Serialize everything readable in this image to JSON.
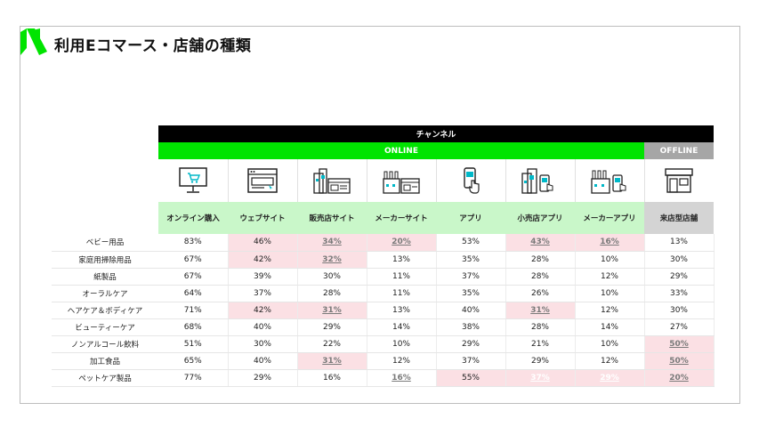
{
  "title": "利用Eコマース・店舗の種類",
  "table": {
    "channel_label": "チャンネル",
    "online_label": "ONLINE",
    "offline_label": "OFFLINE",
    "columns": [
      {
        "name": "オンライン購入",
        "group": "online",
        "icon": "monitor-cart-icon"
      },
      {
        "name": "ウェブサイト",
        "group": "online",
        "icon": "browser-window-icon"
      },
      {
        "name": "販売店サイト",
        "group": "online",
        "icon": "store-building-web-icon"
      },
      {
        "name": "メーカーサイト",
        "group": "online",
        "icon": "factory-web-icon"
      },
      {
        "name": "アプリ",
        "group": "online",
        "icon": "smartphone-tap-icon"
      },
      {
        "name": "小売店アプリ",
        "group": "online",
        "icon": "store-building-app-icon"
      },
      {
        "name": "メーカーアプリ",
        "group": "online",
        "icon": "factory-app-icon"
      },
      {
        "name": "来店型店舗",
        "group": "offline",
        "icon": "storefront-icon"
      }
    ],
    "rows": [
      {
        "label": "ベビー用品",
        "cells": [
          {
            "v": "83%"
          },
          {
            "v": "46%",
            "hl": true
          },
          {
            "v": "34%",
            "hl": true,
            "u": true
          },
          {
            "v": "20%",
            "hl": true,
            "u": true
          },
          {
            "v": "53%"
          },
          {
            "v": "43%",
            "hl": true,
            "u": true
          },
          {
            "v": "16%",
            "hl": true,
            "u": true
          },
          {
            "v": "13%"
          }
        ]
      },
      {
        "label": "家庭用掃除用品",
        "cells": [
          {
            "v": "67%"
          },
          {
            "v": "42%",
            "hl": true
          },
          {
            "v": "32%",
            "hl": true,
            "u": true
          },
          {
            "v": "13%"
          },
          {
            "v": "35%"
          },
          {
            "v": "28%"
          },
          {
            "v": "10%"
          },
          {
            "v": "30%"
          }
        ]
      },
      {
        "label": "紙製品",
        "cells": [
          {
            "v": "67%"
          },
          {
            "v": "39%"
          },
          {
            "v": "30%"
          },
          {
            "v": "11%"
          },
          {
            "v": "37%"
          },
          {
            "v": "28%"
          },
          {
            "v": "12%"
          },
          {
            "v": "29%"
          }
        ]
      },
      {
        "label": "オーラルケア",
        "cells": [
          {
            "v": "64%"
          },
          {
            "v": "37%"
          },
          {
            "v": "28%"
          },
          {
            "v": "11%"
          },
          {
            "v": "35%"
          },
          {
            "v": "26%"
          },
          {
            "v": "10%"
          },
          {
            "v": "33%"
          }
        ]
      },
      {
        "label": "ヘアケア＆ボディケア",
        "cells": [
          {
            "v": "71%"
          },
          {
            "v": "42%",
            "hl": true
          },
          {
            "v": "31%",
            "hl": true,
            "u": true
          },
          {
            "v": "13%"
          },
          {
            "v": "40%"
          },
          {
            "v": "31%",
            "hl": true,
            "u": true
          },
          {
            "v": "12%"
          },
          {
            "v": "30%"
          }
        ]
      },
      {
        "label": "ビューティーケア",
        "cells": [
          {
            "v": "68%"
          },
          {
            "v": "40%"
          },
          {
            "v": "29%"
          },
          {
            "v": "14%"
          },
          {
            "v": "38%"
          },
          {
            "v": "28%"
          },
          {
            "v": "14%"
          },
          {
            "v": "27%"
          }
        ]
      },
      {
        "label": "ノンアルコール飲料",
        "cells": [
          {
            "v": "51%"
          },
          {
            "v": "30%"
          },
          {
            "v": "22%"
          },
          {
            "v": "10%"
          },
          {
            "v": "29%"
          },
          {
            "v": "21%"
          },
          {
            "v": "10%"
          },
          {
            "v": "50%",
            "hl": true,
            "u": true
          }
        ]
      },
      {
        "label": "加工食品",
        "cells": [
          {
            "v": "65%"
          },
          {
            "v": "40%"
          },
          {
            "v": "31%",
            "hl": true,
            "u": true
          },
          {
            "v": "12%"
          },
          {
            "v": "37%"
          },
          {
            "v": "29%"
          },
          {
            "v": "12%"
          },
          {
            "v": "50%",
            "hl": true,
            "u": true
          }
        ]
      },
      {
        "label": "ペットケア製品",
        "cells": [
          {
            "v": "77%"
          },
          {
            "v": "29%"
          },
          {
            "v": "16%"
          },
          {
            "v": "16%",
            "u": true
          },
          {
            "v": "55%",
            "hl": true
          },
          {
            "v": "37%",
            "hl": true,
            "faint": true
          },
          {
            "v": "29%",
            "hl": true,
            "faint": true
          },
          {
            "v": "20%",
            "hl": true,
            "u": true
          }
        ]
      }
    ]
  },
  "colors": {
    "brand_green": "#00e400",
    "online_light": "#c9f7c9",
    "offline_gray": "#a6a6a6",
    "highlight_pink": "#fbe0e4"
  }
}
